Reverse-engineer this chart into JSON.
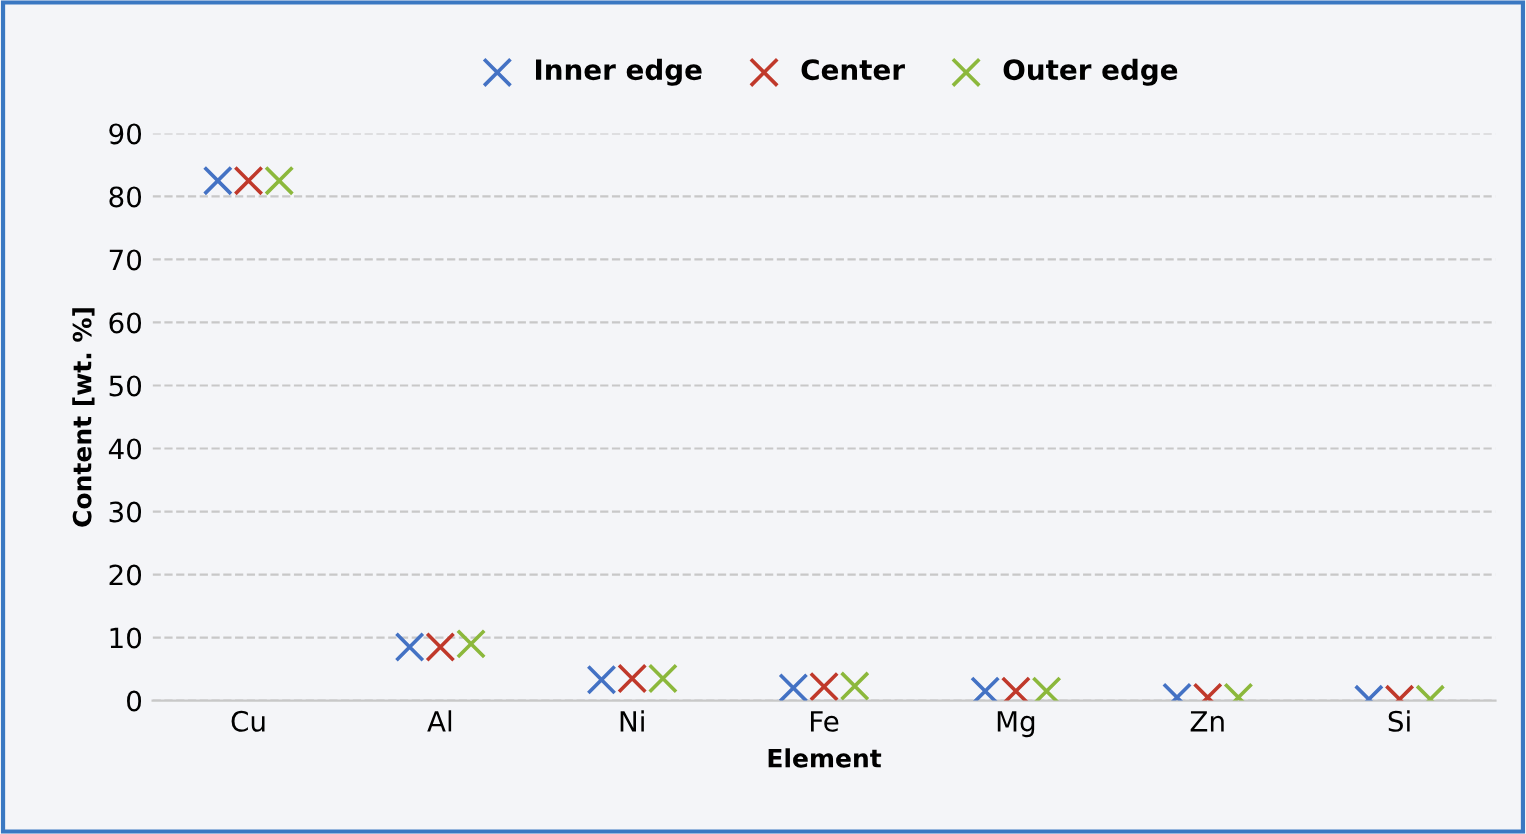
{
  "chart_data": {
    "type": "scatter",
    "xlabel": "Element",
    "ylabel": "Content [wt. %]",
    "categories": [
      "Cu",
      "Al",
      "Ni",
      "Fe",
      "Mg",
      "Zn",
      "Si"
    ],
    "series": [
      {
        "name": "Inner edge",
        "color": "#4472c4",
        "values": [
          82.5,
          8.5,
          3.3,
          2,
          1.5,
          0.5,
          0.2
        ]
      },
      {
        "name": "Center",
        "color": "#c0392b",
        "values": [
          82.5,
          8.5,
          3.5,
          2.2,
          1.5,
          0.5,
          0.2
        ]
      },
      {
        "name": "Outer edge",
        "color": "#8cb83c",
        "values": [
          82.5,
          9,
          3.5,
          2.3,
          1.5,
          0.5,
          0.2
        ]
      }
    ],
    "ylim": [
      0,
      90
    ],
    "yticks": [
      0,
      10,
      20,
      30,
      40,
      50,
      60,
      70,
      80,
      90
    ],
    "grid": "y",
    "legend": "top",
    "marker": "cross"
  }
}
